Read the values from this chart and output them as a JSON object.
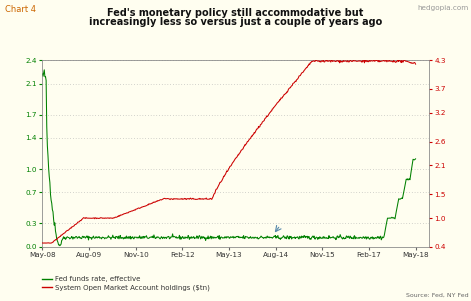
{
  "title_line1": "Fed's monetary policy still accommodative but",
  "title_line2": "increasingly less so versus just a couple of years ago",
  "chart_label": "Chart 4",
  "source_text": "Source: Fed, NY Fed",
  "watermark": "hedgopia.com",
  "left_ylim": [
    0.0,
    2.4
  ],
  "right_ylim": [
    0.4,
    4.3
  ],
  "left_yticks": [
    0.0,
    0.3,
    0.7,
    1.0,
    1.4,
    1.7,
    2.1,
    2.4
  ],
  "right_yticks": [
    0.4,
    1.0,
    1.5,
    2.1,
    2.6,
    3.2,
    3.7,
    4.3
  ],
  "xtick_labels": [
    "May-08",
    "Aug-09",
    "Nov-10",
    "Feb-12",
    "May-13",
    "Aug-14",
    "Nov-15",
    "Feb-17",
    "May-18"
  ],
  "color_green": "#008000",
  "color_red": "#cc0000",
  "bg_color": "#fffef0",
  "grid_color": "#aaaaaa",
  "legend_items": [
    "Fed funds rate, effective",
    "System Open Market Account holdings ($tn)"
  ]
}
